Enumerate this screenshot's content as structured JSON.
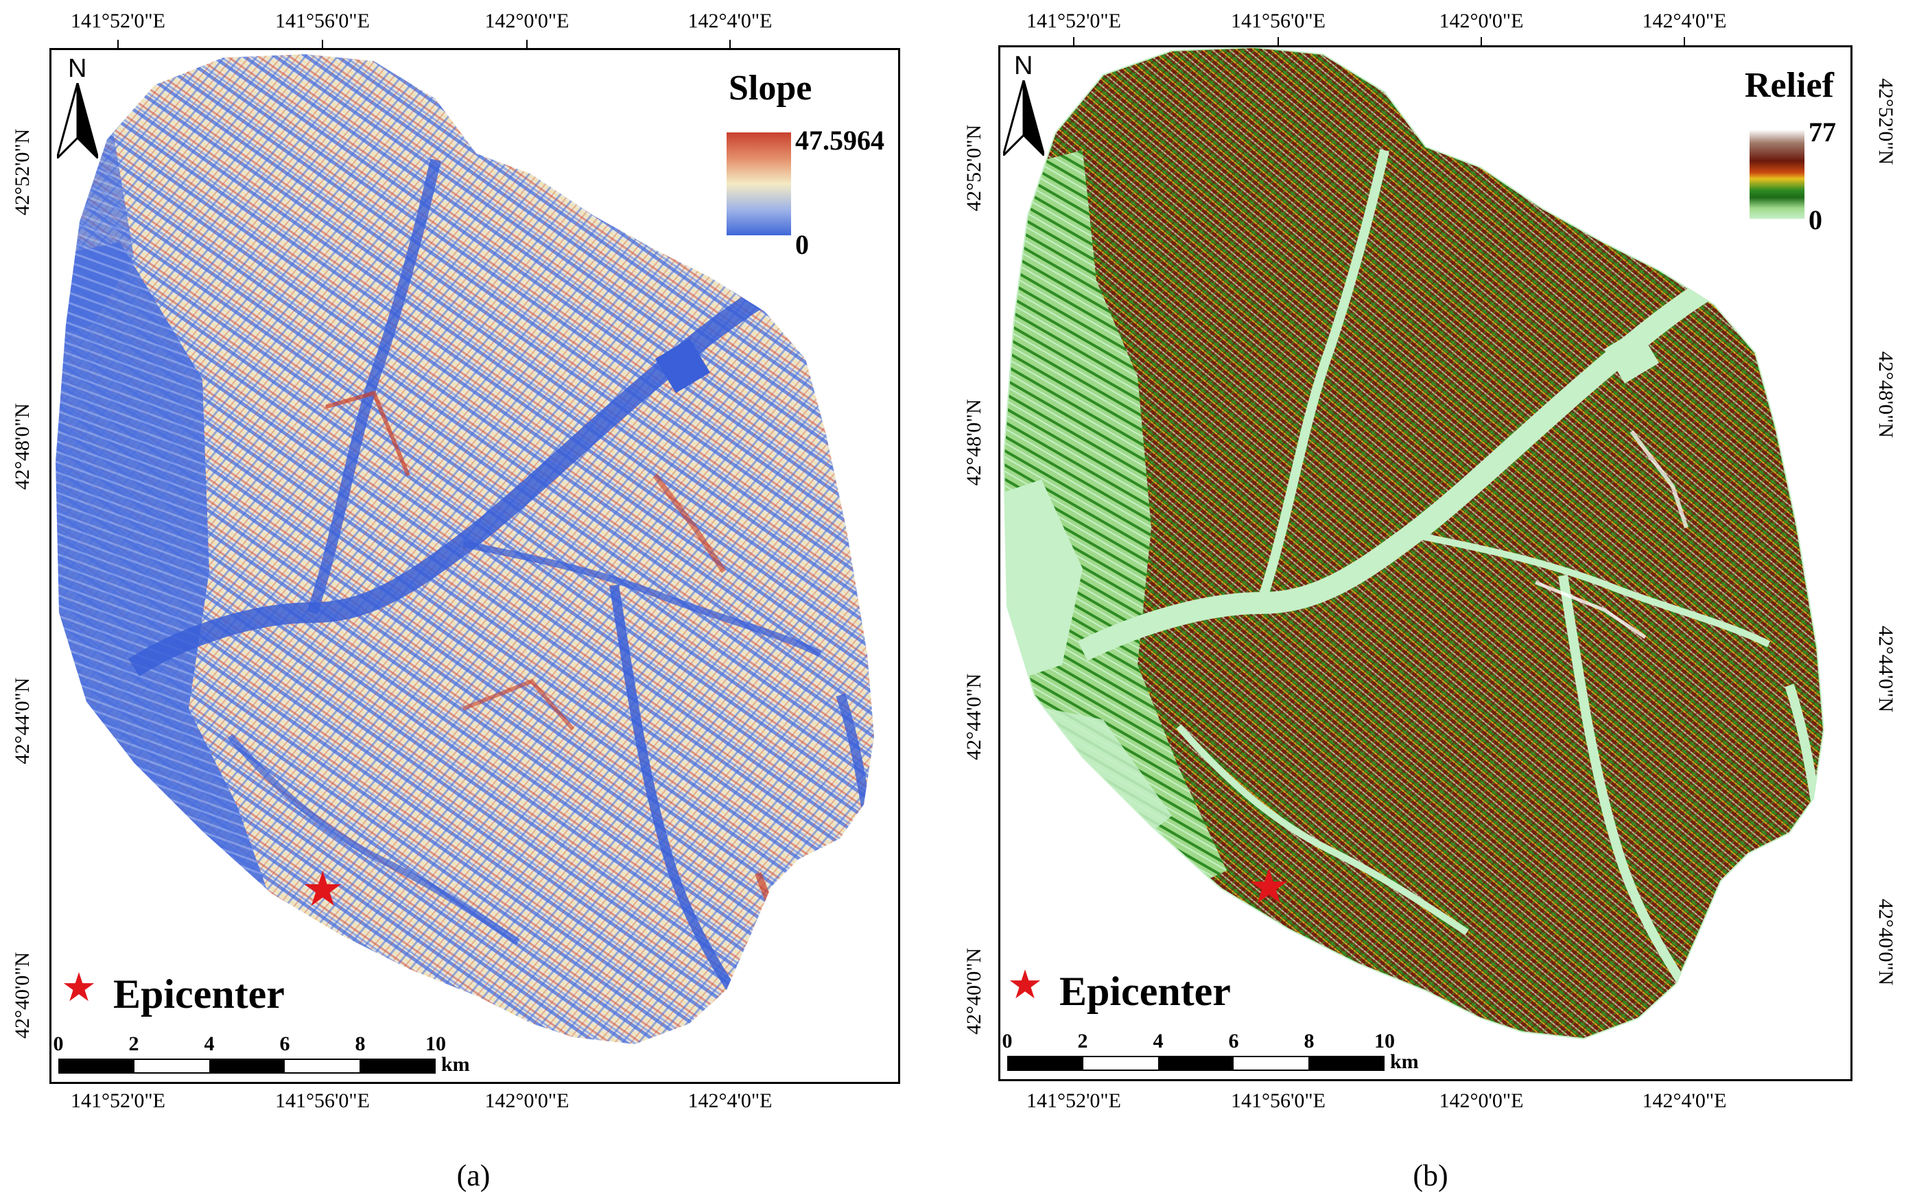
{
  "colors": {
    "slope_low": "#4169e1",
    "slope_mid": "#f5efc8",
    "slope_high": "#cd3a2a",
    "relief_low": "#c6f0c8",
    "relief_green": "#2e8b23",
    "relief_yellow": "#e6b820",
    "relief_brown": "#7a2510",
    "relief_high": "#ffffff",
    "epicenter": "#e0161b"
  },
  "panels": [
    {
      "id": "a",
      "caption": "(a)",
      "legend": {
        "title": "Slope",
        "max": "47.5964",
        "min": "0"
      },
      "north_label": "N",
      "epicenter_label": "Epicenter",
      "scale": {
        "ticks": [
          "0",
          "2",
          "4",
          "6",
          "8",
          "10"
        ],
        "unit": "km"
      },
      "lon_labels": [
        "141°52'0\"E",
        "141°56'0\"E",
        "142°0'0\"E",
        "142°4'0\"E"
      ],
      "lat_labels": [
        "42°52'0\"N",
        "42°48'0\"N",
        "42°44'0\"N",
        "42°40'0\"N"
      ]
    },
    {
      "id": "b",
      "caption": "(b)",
      "legend": {
        "title": "Relief",
        "max": "77",
        "min": "0"
      },
      "north_label": "N",
      "epicenter_label": "Epicenter",
      "scale": {
        "ticks": [
          "0",
          "2",
          "4",
          "6",
          "8",
          "10"
        ],
        "unit": "km"
      },
      "lon_labels": [
        "141°52'0\"E",
        "141°56'0\"E",
        "142°0'0\"E",
        "142°4'0\"E"
      ],
      "lat_labels": [
        "42°52'0\"N",
        "42°48'0\"N",
        "42°44'0\"N",
        "42°40'0\"N"
      ]
    }
  ]
}
